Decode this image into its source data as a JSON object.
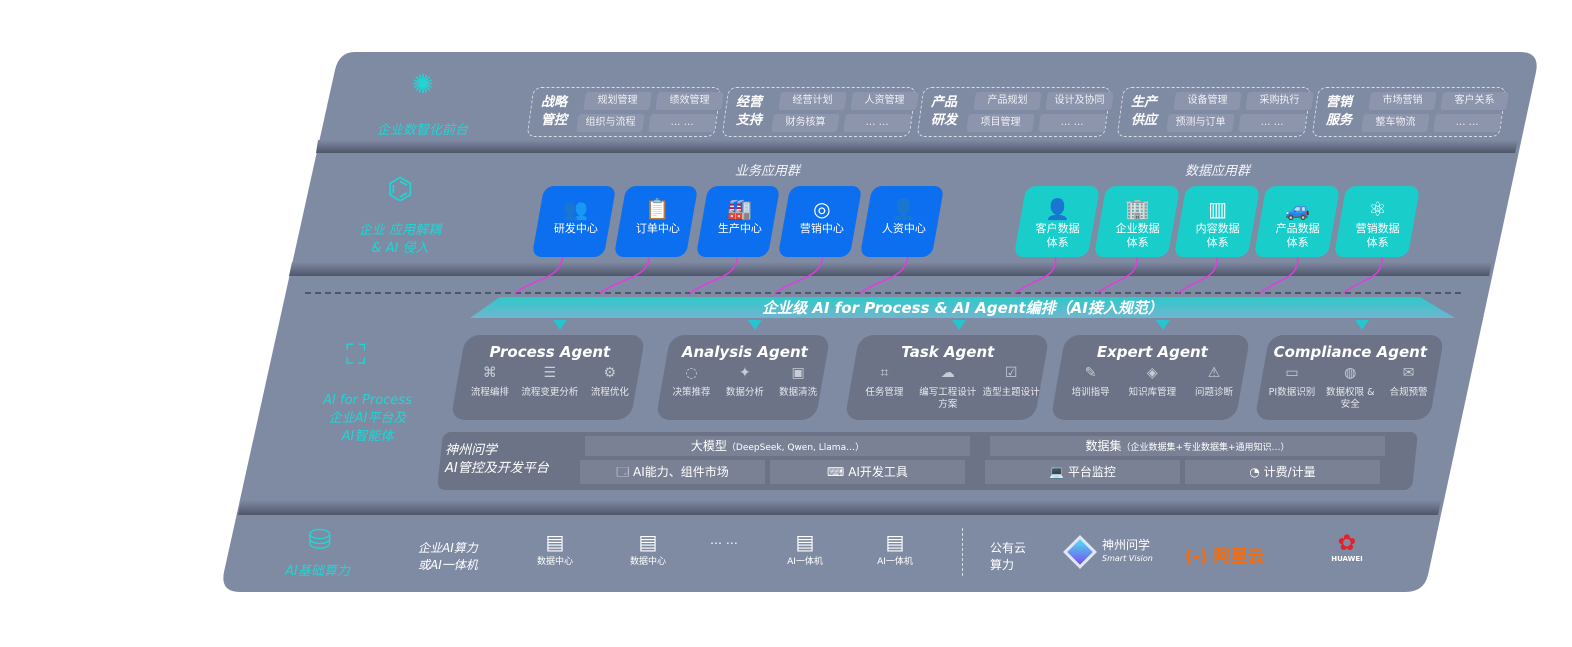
{
  "colors": {
    "panel": "#7f8aa3",
    "accent_cyan": "#1fd6d4",
    "business_tile": "#0b6ff0",
    "data_tile": "#19cdca",
    "arrow": "#e23be0",
    "aliyun": "#ff6a00",
    "huawei": "#e5202a"
  },
  "layer1": {
    "label": "企业数智化前台",
    "icon": "brain-icon",
    "groups": [
      {
        "title": "战略管控",
        "items": [
          "规划管理",
          "绩效管理",
          "组织与流程",
          "… …"
        ]
      },
      {
        "title": "经营支持",
        "items": [
          "经营计划",
          "人资管理",
          "财务核算",
          "… …"
        ]
      },
      {
        "title": "产品研发",
        "items": [
          "产品规划",
          "设计及协同",
          "项目管理",
          "… …"
        ]
      },
      {
        "title": "生产供应",
        "items": [
          "设备管理",
          "采购执行",
          "预测与订单",
          "… …"
        ]
      },
      {
        "title": "营销服务",
        "items": [
          "市场营销",
          "客户关系",
          "整车物流",
          "… …"
        ]
      }
    ]
  },
  "layer2": {
    "label_line1": "企业 应用解耦",
    "label_line2": "& AI 侵入",
    "icon": "molecule-icon",
    "business_title": "业务应用群",
    "business": [
      {
        "label": "研发中心",
        "icon": "users-icon"
      },
      {
        "label": "订单中心",
        "icon": "clipboard-icon"
      },
      {
        "label": "生产中心",
        "icon": "factory-icon"
      },
      {
        "label": "营销中心",
        "icon": "target-icon"
      },
      {
        "label": "人资中心",
        "icon": "person-icon"
      }
    ],
    "data_title": "数据应用群",
    "data": [
      {
        "l1": "客户数据",
        "l2": "体系",
        "icon": "user-icon"
      },
      {
        "l1": "企业数据",
        "l2": "体系",
        "icon": "building-icon"
      },
      {
        "l1": "内容数据",
        "l2": "体系",
        "icon": "books-icon"
      },
      {
        "l1": "产品数据",
        "l2": "体系",
        "icon": "car-icon"
      },
      {
        "l1": "营销数据",
        "l2": "体系",
        "icon": "atom-icon"
      }
    ]
  },
  "band": "企业级 AI for Process & AI Agent编排（AI接入规范）",
  "layer3": {
    "label_line1": "AI for Process",
    "label_line2": "企业AI平台及",
    "label_line3": "AI智能体",
    "icon": "face-scan-icon",
    "agents": [
      {
        "name": "Process Agent",
        "items": [
          "流程编排",
          "流程变更分析",
          "流程优化"
        ]
      },
      {
        "name": "Analysis Agent",
        "items": [
          "决策推荐",
          "数据分析",
          "数据清洗"
        ]
      },
      {
        "name": "Task Agent",
        "items": [
          "任务管理",
          "编写工程设计方案",
          "造型主题设计"
        ]
      },
      {
        "name": "Expert Agent",
        "items": [
          "培训指导",
          "知识库管理",
          "问题诊断"
        ]
      },
      {
        "name": "Compliance Agent",
        "items": [
          "PI数据识别",
          "数据权限 & 安全",
          "合规预警"
        ]
      }
    ],
    "platform": {
      "title_line1": "神州问学",
      "title_line2": "AI管控及开发平台",
      "model": "大模型",
      "model_note": "（DeepSeek, Qwen, Llama…）",
      "market": "AI能力、组件市场",
      "devtools": "AI开发工具",
      "dataset": "数据集",
      "dataset_note": "（企业数据集+专业数据集+通用知识…）",
      "monitor": "平台监控",
      "billing": "计费/计量"
    }
  },
  "layer4": {
    "label": "AI基础算力",
    "icon": "database-icon",
    "enterprise_line1": "企业AI算力",
    "enterprise_line2": "或AI一体机",
    "servers": [
      "数据中心",
      "数据中心",
      "AI一体机",
      "AI一体机"
    ],
    "ellipsis": "… …",
    "public_line1": "公有云",
    "public_line2": "算力",
    "vendors": {
      "sv_cn": "神州问学",
      "sv_en": "Smart Vision",
      "aliyun": "阿里云",
      "huawei": "HUAWEI"
    }
  }
}
